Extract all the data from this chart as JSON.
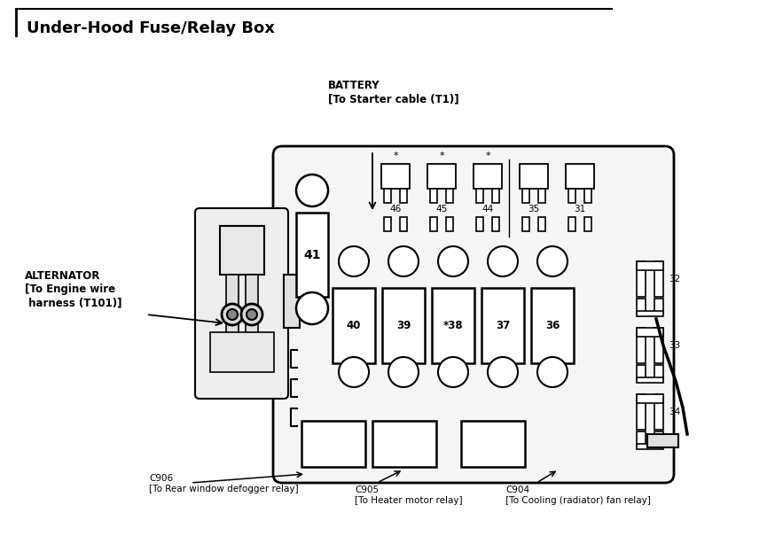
{
  "title": "Under-Hood Fuse/Relay Box",
  "bg_color": "#ffffff",
  "line_color": "#000000",
  "title_fontsize": 13,
  "label_fontsize": 8,
  "small_fontsize": 7.5,
  "battery_label": "BATTERY\n[To Starter cable (T1)]",
  "alternator_label": "ALTERNATOR\n[To Engine wire\n harness (T101)]",
  "c906_label": "C906\n[To Rear window defogger relay]",
  "c905_label": "C905\n[To Heater motor relay]",
  "c904_label": "C904\n[To Cooling (radiator) fan relay]",
  "fuse_numbers_top": [
    "46",
    "45",
    "44",
    "35",
    "31"
  ],
  "fuse_numbers_mid": [
    "40",
    "39",
    "*38",
    "37",
    "36"
  ],
  "fuse_numbers_right": [
    "32",
    "33",
    "34"
  ],
  "fuse_41": "41"
}
